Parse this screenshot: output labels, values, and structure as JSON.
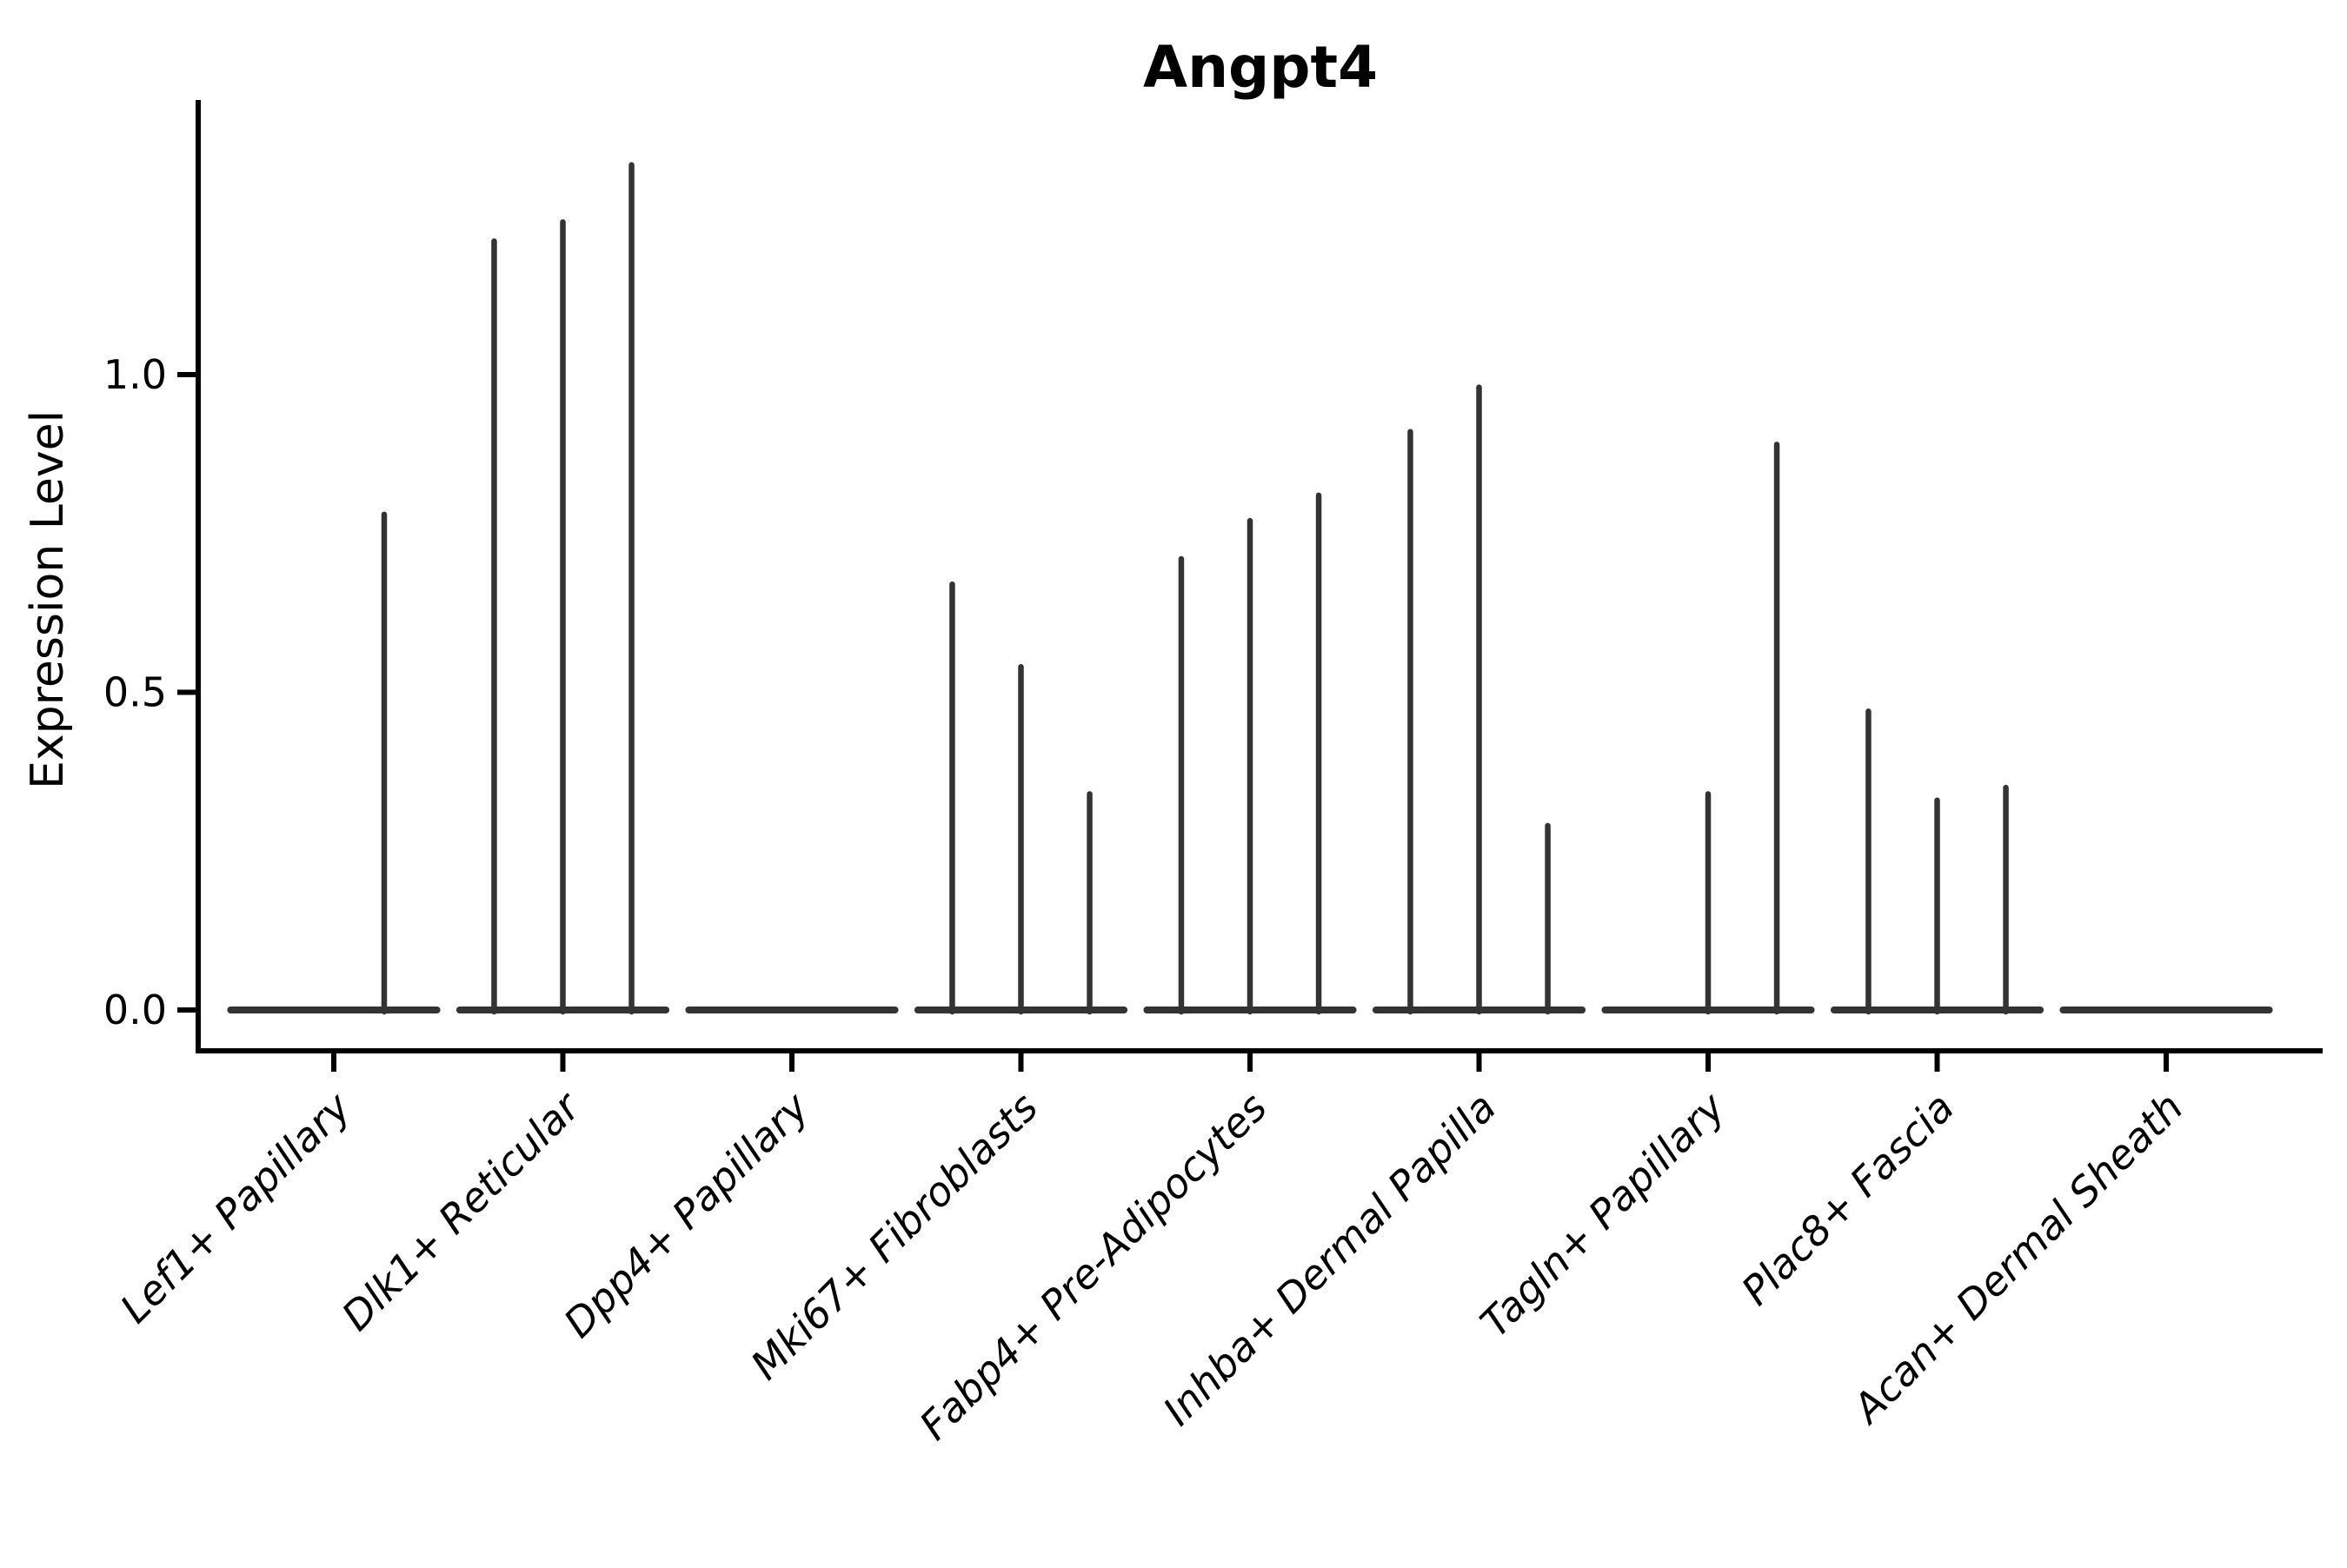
{
  "title": "Angpt4",
  "y_axis": {
    "label": "Expression Level",
    "tick_labels": [
      "0.0",
      "0.5",
      "1.0"
    ]
  },
  "chart_data": {
    "type": "violin",
    "title": "Angpt4",
    "xlabel": "",
    "ylabel": "Expression Level",
    "yticks": [
      0.0,
      0.5,
      1.0
    ],
    "ylim": [
      -0.06,
      1.45
    ],
    "grid": false,
    "legend": false,
    "categories": [
      "Lef1+ Papillary",
      "Dlk1+ Reticular",
      "Dpp4+ Papillary",
      "Mki67+ Fibroblasts",
      "Fabp4+ Pre-Adipocytes",
      "Inhba+ Dermal Papilla",
      "Tagln+ Papillary",
      "Plac8+ Fascia",
      "Acan+ Dermal Sheath"
    ],
    "baseline_value": 0.0,
    "baseline_halfwidth": 0.45,
    "groups": [
      {
        "category": "Lef1+ Papillary",
        "spikes": [
          {
            "offset": 0.22,
            "value": 0.78
          }
        ]
      },
      {
        "category": "Dlk1+ Reticular",
        "spikes": [
          {
            "offset": -0.3,
            "value": 1.21
          },
          {
            "offset": 0.0,
            "value": 1.24
          },
          {
            "offset": 0.3,
            "value": 1.33
          }
        ]
      },
      {
        "category": "Dpp4+ Papillary",
        "spikes": []
      },
      {
        "category": "Mki67+ Fibroblasts",
        "spikes": [
          {
            "offset": -0.3,
            "value": 0.67
          },
          {
            "offset": 0.0,
            "value": 0.54
          },
          {
            "offset": 0.3,
            "value": 0.34
          }
        ]
      },
      {
        "category": "Fabp4+ Pre-Adipocytes",
        "spikes": [
          {
            "offset": -0.3,
            "value": 0.71
          },
          {
            "offset": 0.0,
            "value": 0.77
          },
          {
            "offset": 0.3,
            "value": 0.81
          }
        ]
      },
      {
        "category": "Inhba+ Dermal Papilla",
        "spikes": [
          {
            "offset": -0.3,
            "value": 0.91
          },
          {
            "offset": 0.0,
            "value": 0.98
          },
          {
            "offset": 0.3,
            "value": 0.29
          }
        ]
      },
      {
        "category": "Tagln+ Papillary",
        "spikes": [
          {
            "offset": 0.0,
            "value": 0.34
          },
          {
            "offset": 0.3,
            "value": 0.89
          }
        ]
      },
      {
        "category": "Plac8+ Fascia",
        "spikes": [
          {
            "offset": -0.3,
            "value": 0.47
          },
          {
            "offset": 0.0,
            "value": 0.33
          },
          {
            "offset": 0.3,
            "value": 0.35
          }
        ]
      },
      {
        "category": "Acan+ Dermal Sheath",
        "spikes": []
      }
    ],
    "colors": {
      "violin_stroke": "#333333",
      "axis": "#000000",
      "background": "#ffffff"
    }
  }
}
